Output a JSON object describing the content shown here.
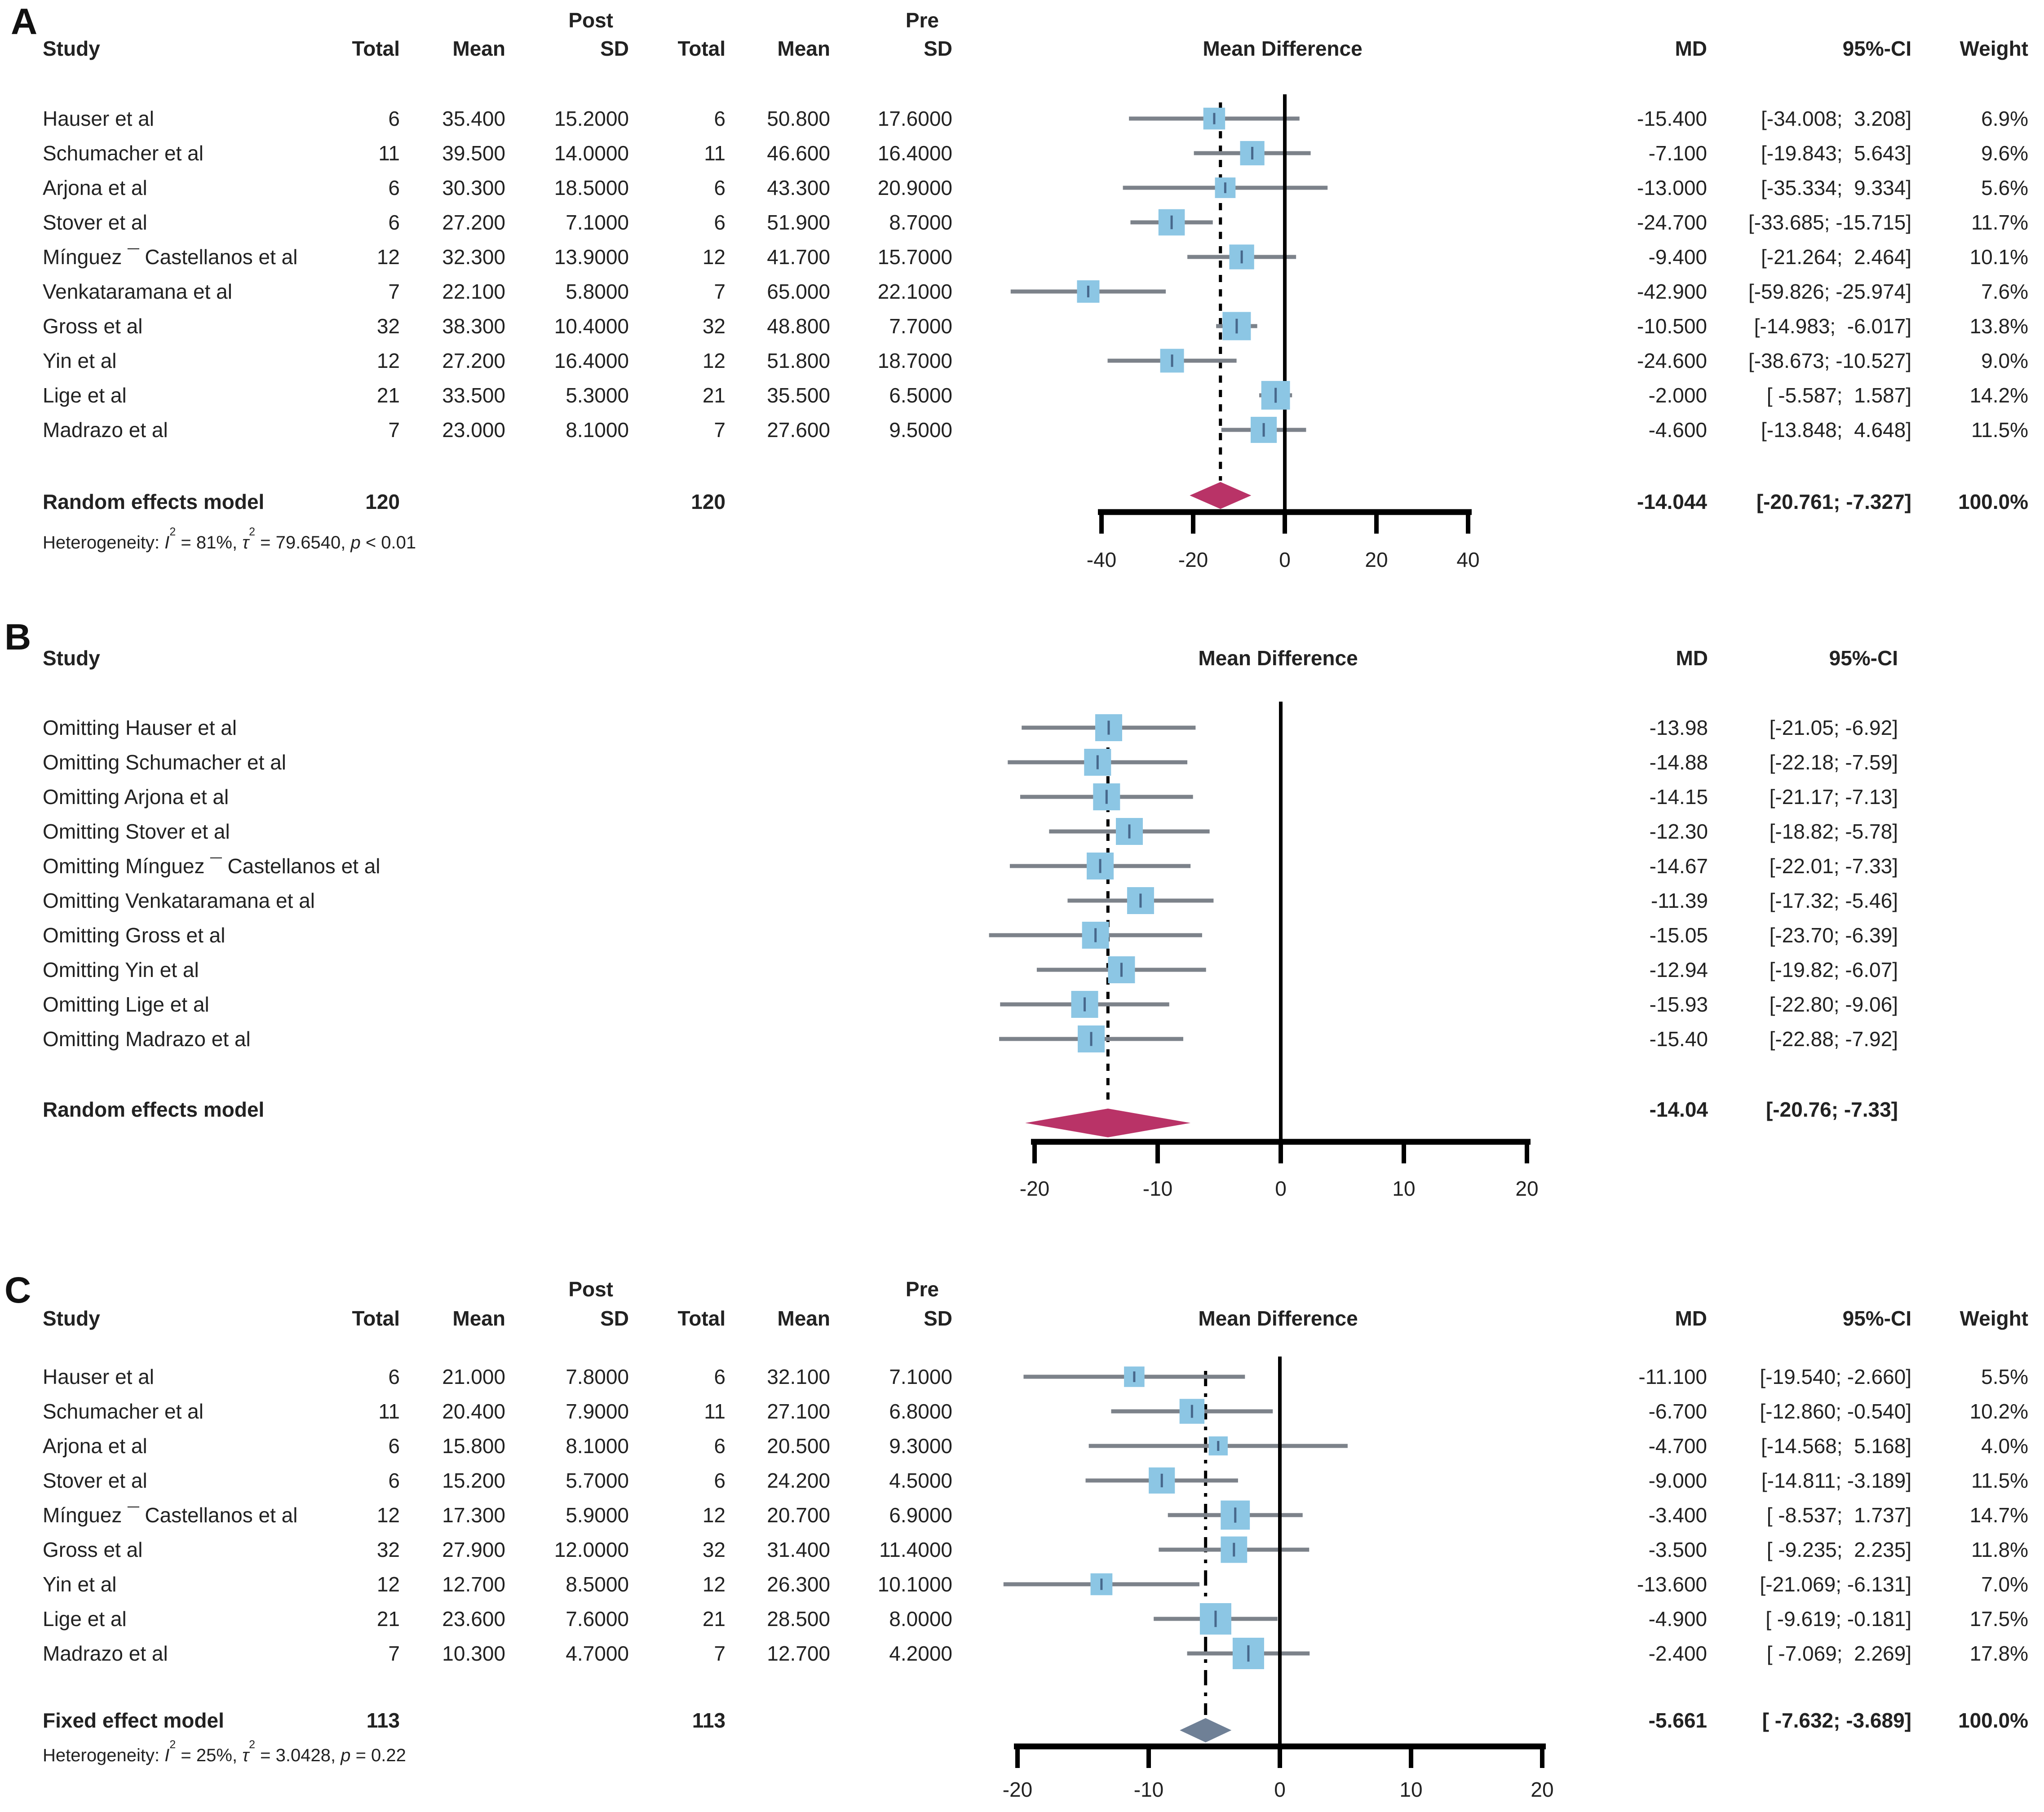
{
  "colors": {
    "square": "#8cc6e4",
    "square_tick": "#47688c",
    "ci_line": "#7c828a",
    "diamond_random": "#b93367",
    "diamond_fixed": "#6f8096",
    "axis": "#000000",
    "text": "#222222"
  },
  "chart_data": [
    {
      "type": "forest",
      "panel_label": "A",
      "header": {
        "study": "Study",
        "post": "Post",
        "pre": "Pre",
        "total": "Total",
        "mean": "Mean",
        "sd": "SD",
        "total_pre": "Total",
        "mean_pre": "Mean",
        "sd_pre": "SD",
        "mean_difference": "Mean Difference",
        "md": "MD",
        "ci": "95%-CI",
        "weight": "Weight"
      },
      "xlabel": "Mean Difference",
      "xlim": [
        -40,
        40
      ],
      "xticks": [
        -40,
        -20,
        0,
        20,
        40
      ],
      "ref_line": 0,
      "studies": [
        {
          "study": "Hauser et al",
          "total": "6",
          "mean": "35.400",
          "sd": "15.2000",
          "total_pre": "6",
          "mean_pre": "50.800",
          "sd_pre": "17.6000",
          "md": "-15.400",
          "ci": "[-34.008;  3.208]",
          "weight": "6.9%"
        },
        {
          "study": "Schumacher et al",
          "total": "11",
          "mean": "39.500",
          "sd": "14.0000",
          "total_pre": "11",
          "mean_pre": "46.600",
          "sd_pre": "16.4000",
          "md": "-7.100",
          "ci": "[-19.843;  5.643]",
          "weight": "9.6%"
        },
        {
          "study": "Arjona et al",
          "total": "6",
          "mean": "30.300",
          "sd": "18.5000",
          "total_pre": "6",
          "mean_pre": "43.300",
          "sd_pre": "20.9000",
          "md": "-13.000",
          "ci": "[-35.334;  9.334]",
          "weight": "5.6%"
        },
        {
          "study": "Stover et al",
          "total": "6",
          "mean": "27.200",
          "sd": "7.1000",
          "total_pre": "6",
          "mean_pre": "51.900",
          "sd_pre": "8.7000",
          "md": "-24.700",
          "ci": "[-33.685; -15.715]",
          "weight": "11.7%"
        },
        {
          "study": "Mínguez ¯ Castellanos et al",
          "total": "12",
          "mean": "32.300",
          "sd": "13.9000",
          "total_pre": "12",
          "mean_pre": "41.700",
          "sd_pre": "15.7000",
          "md": "-9.400",
          "ci": "[-21.264;  2.464]",
          "weight": "10.1%"
        },
        {
          "study": "Venkataramana et al",
          "total": "7",
          "mean": "22.100",
          "sd": "5.8000",
          "total_pre": "7",
          "mean_pre": "65.000",
          "sd_pre": "22.1000",
          "md": "-42.900",
          "ci": "[-59.826; -25.974]",
          "weight": "7.6%"
        },
        {
          "study": "Gross et al",
          "total": "32",
          "mean": "38.300",
          "sd": "10.4000",
          "total_pre": "32",
          "mean_pre": "48.800",
          "sd_pre": "7.7000",
          "md": "-10.500",
          "ci": "[-14.983;  -6.017]",
          "weight": "13.8%"
        },
        {
          "study": "Yin et al",
          "total": "12",
          "mean": "27.200",
          "sd": "16.4000",
          "total_pre": "12",
          "mean_pre": "51.800",
          "sd_pre": "18.7000",
          "md": "-24.600",
          "ci": "[-38.673; -10.527]",
          "weight": "9.0%"
        },
        {
          "study": "Lige et al",
          "total": "21",
          "mean": "33.500",
          "sd": "5.3000",
          "total_pre": "21",
          "mean_pre": "35.500",
          "sd_pre": "6.5000",
          "md": "-2.000",
          "ci": "[ -5.587;  1.587]",
          "weight": "14.2%"
        },
        {
          "study": "Madrazo et al",
          "total": "7",
          "mean": "23.000",
          "sd": "8.1000",
          "total_pre": "7",
          "mean_pre": "27.600",
          "sd_pre": "9.5000",
          "md": "-4.600",
          "ci": "[-13.848;  4.648]",
          "weight": "11.5%"
        }
      ],
      "summary": {
        "label": "Random effects model",
        "total": "120",
        "total_pre": "120",
        "md": "-14.044",
        "ci": "[-20.761; -7.327]",
        "weight": "100.0%"
      },
      "heterogeneity": {
        "label": "Heterogeneity:",
        "i_symbol": "I",
        "sup": "2",
        "i_value": "= 81%,",
        "tau_symbol": "τ",
        "tau_value": "= 79.6540,",
        "p_symbol": "p",
        "p_value": "< 0.01"
      }
    },
    {
      "type": "forest",
      "panel_label": "B",
      "header": {
        "study": "Study",
        "mean_difference": "Mean Difference",
        "md": "MD",
        "ci": "95%-CI"
      },
      "xlabel": "Mean Difference",
      "xlim": [
        -20,
        20
      ],
      "xticks": [
        -20,
        -10,
        0,
        10,
        20
      ],
      "ref_line": 0,
      "studies": [
        {
          "study": "Omitting Hauser et al",
          "md": "-13.98",
          "ci": "[-21.05; -6.92]"
        },
        {
          "study": "Omitting Schumacher et al",
          "md": "-14.88",
          "ci": "[-22.18; -7.59]"
        },
        {
          "study": "Omitting Arjona et al",
          "md": "-14.15",
          "ci": "[-21.17; -7.13]"
        },
        {
          "study": "Omitting Stover et al",
          "md": "-12.30",
          "ci": "[-18.82; -5.78]"
        },
        {
          "study": "Omitting Mínguez ¯ Castellanos et al",
          "md": "-14.67",
          "ci": "[-22.01; -7.33]"
        },
        {
          "study": "Omitting Venkataramana et al",
          "md": "-11.39",
          "ci": "[-17.32; -5.46]"
        },
        {
          "study": "Omitting Gross et al",
          "md": "-15.05",
          "ci": "[-23.70; -6.39]"
        },
        {
          "study": "Omitting Yin et al",
          "md": "-12.94",
          "ci": "[-19.82; -6.07]"
        },
        {
          "study": "Omitting Lige et al",
          "md": "-15.93",
          "ci": "[-22.80; -9.06]"
        },
        {
          "study": "Omitting Madrazo et al",
          "md": "-15.40",
          "ci": "[-22.88; -7.92]"
        }
      ],
      "summary": {
        "label": "Random effects model",
        "md": "-14.04",
        "ci": "[-20.76; -7.33]"
      }
    },
    {
      "type": "forest",
      "panel_label": "C",
      "header": {
        "study": "Study",
        "post": "Post",
        "pre": "Pre",
        "total": "Total",
        "mean": "Mean",
        "sd": "SD",
        "total_pre": "Total",
        "mean_pre": "Mean",
        "sd_pre": "SD",
        "mean_difference": "Mean Difference",
        "md": "MD",
        "ci": "95%-CI",
        "weight": "Weight"
      },
      "xlabel": "Mean Difference",
      "xlim": [
        -20,
        20
      ],
      "xticks": [
        -20,
        -10,
        0,
        10,
        20
      ],
      "ref_line": 0,
      "studies": [
        {
          "study": "Hauser et al",
          "total": "6",
          "mean": "21.000",
          "sd": "7.8000",
          "total_pre": "6",
          "mean_pre": "32.100",
          "sd_pre": "7.1000",
          "md": "-11.100",
          "ci": "[-19.540; -2.660]",
          "weight": "5.5%"
        },
        {
          "study": "Schumacher et al",
          "total": "11",
          "mean": "20.400",
          "sd": "7.9000",
          "total_pre": "11",
          "mean_pre": "27.100",
          "sd_pre": "6.8000",
          "md": "-6.700",
          "ci": "[-12.860; -0.540]",
          "weight": "10.2%"
        },
        {
          "study": "Arjona et al",
          "total": "6",
          "mean": "15.800",
          "sd": "8.1000",
          "total_pre": "6",
          "mean_pre": "20.500",
          "sd_pre": "9.3000",
          "md": "-4.700",
          "ci": "[-14.568;  5.168]",
          "weight": "4.0%"
        },
        {
          "study": "Stover et al",
          "total": "6",
          "mean": "15.200",
          "sd": "5.7000",
          "total_pre": "6",
          "mean_pre": "24.200",
          "sd_pre": "4.5000",
          "md": "-9.000",
          "ci": "[-14.811; -3.189]",
          "weight": "11.5%"
        },
        {
          "study": "Mínguez ¯ Castellanos et al",
          "total": "12",
          "mean": "17.300",
          "sd": "5.9000",
          "total_pre": "12",
          "mean_pre": "20.700",
          "sd_pre": "6.9000",
          "md": "-3.400",
          "ci": "[ -8.537;  1.737]",
          "weight": "14.7%"
        },
        {
          "study": "Gross et al",
          "total": "32",
          "mean": "27.900",
          "sd": "12.0000",
          "total_pre": "32",
          "mean_pre": "31.400",
          "sd_pre": "11.4000",
          "md": "-3.500",
          "ci": "[ -9.235;  2.235]",
          "weight": "11.8%"
        },
        {
          "study": "Yin et al",
          "total": "12",
          "mean": "12.700",
          "sd": "8.5000",
          "total_pre": "12",
          "mean_pre": "26.300",
          "sd_pre": "10.1000",
          "md": "-13.600",
          "ci": "[-21.069; -6.131]",
          "weight": "7.0%"
        },
        {
          "study": "Lige et al",
          "total": "21",
          "mean": "23.600",
          "sd": "7.6000",
          "total_pre": "21",
          "mean_pre": "28.500",
          "sd_pre": "8.0000",
          "md": "-4.900",
          "ci": "[ -9.619; -0.181]",
          "weight": "17.5%"
        },
        {
          "study": "Madrazo et al",
          "total": "7",
          "mean": "10.300",
          "sd": "4.7000",
          "total_pre": "7",
          "mean_pre": "12.700",
          "sd_pre": "4.2000",
          "md": "-2.400",
          "ci": "[ -7.069;  2.269]",
          "weight": "17.8%"
        }
      ],
      "summary": {
        "label": "Fixed effect model",
        "total": "113",
        "total_pre": "113",
        "md": "-5.661",
        "ci": "[ -7.632; -3.689]",
        "weight": "100.0%"
      },
      "heterogeneity": {
        "label": "Heterogeneity:",
        "i_symbol": "I",
        "sup": "2",
        "i_value": "= 25%,",
        "tau_symbol": "τ",
        "tau_value": "= 3.0428,",
        "p_symbol": "p",
        "p_value": "= 0.22"
      }
    }
  ]
}
